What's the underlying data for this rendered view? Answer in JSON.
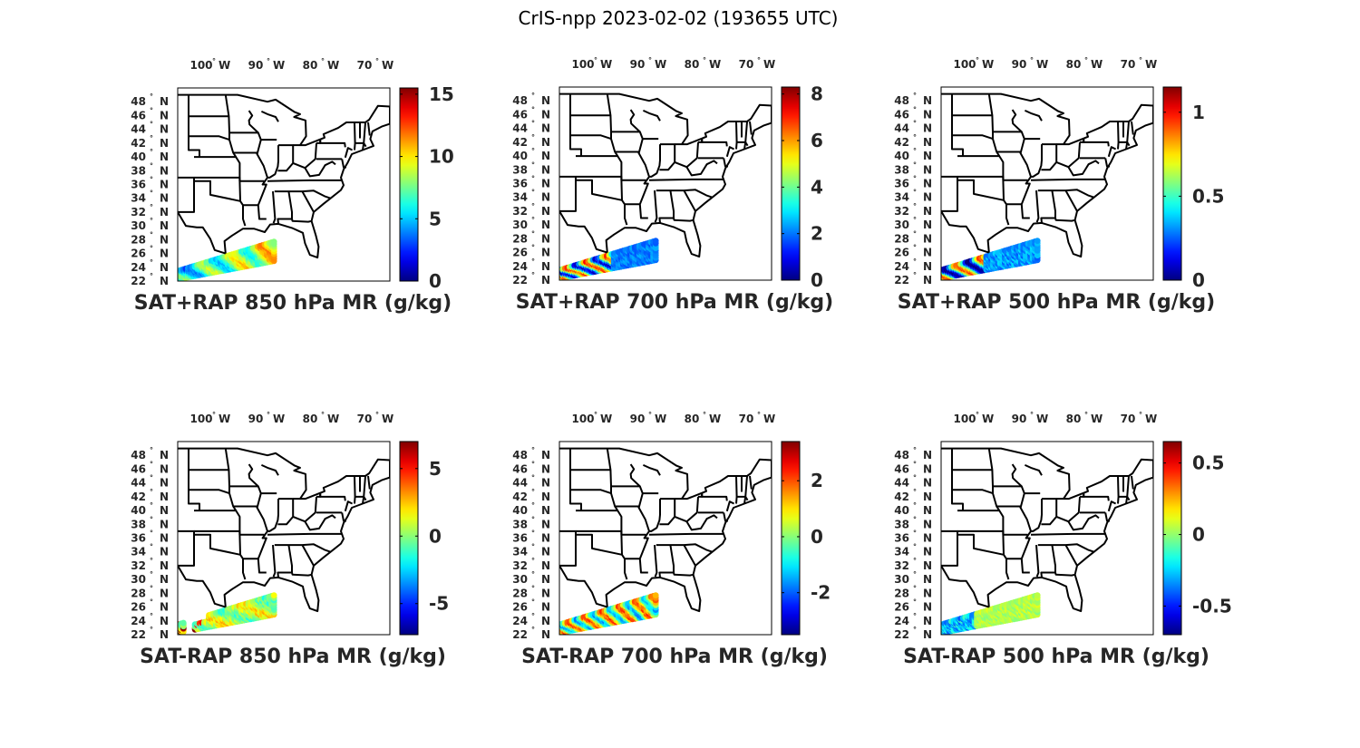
{
  "figure": {
    "title": "CrIS-npp 2023-02-02 (193655 UTC)",
    "lon_ticks": [
      {
        "val": 100,
        "label": "W"
      },
      {
        "val": 90,
        "label": "W"
      },
      {
        "val": 80,
        "label": "W"
      },
      {
        "val": 70,
        "label": "W"
      }
    ],
    "lat_ticks": [
      {
        "val": 48,
        "label": "N"
      },
      {
        "val": 46,
        "label": "N"
      },
      {
        "val": 44,
        "label": "N"
      },
      {
        "val": 42,
        "label": "N"
      },
      {
        "val": 40,
        "label": "N"
      },
      {
        "val": 38,
        "label": "N"
      },
      {
        "val": 36,
        "label": "N"
      },
      {
        "val": 34,
        "label": "N"
      },
      {
        "val": 32,
        "label": "N"
      },
      {
        "val": 30,
        "label": "N"
      },
      {
        "val": 28,
        "label": "N"
      },
      {
        "val": 26,
        "label": "N"
      },
      {
        "val": 24,
        "label": "N"
      },
      {
        "val": 22,
        "label": "N"
      }
    ],
    "colormap": "jet",
    "map_extent": {
      "lon_min": -106,
      "lon_max": -67,
      "lat_min": 22,
      "lat_max": 50
    }
  },
  "panels": [
    {
      "title": "SAT+RAP 850 hPa MR (g/kg)",
      "clim": [
        0,
        15.5
      ],
      "cb_ticks": [
        0,
        5,
        10,
        15
      ],
      "data_pattern": "moist-850"
    },
    {
      "title": "SAT+RAP 700 hPa MR (g/kg)",
      "clim": [
        0,
        8.3
      ],
      "cb_ticks": [
        0,
        2,
        4,
        6,
        8
      ],
      "data_pattern": "moist-700"
    },
    {
      "title": "SAT+RAP 500 hPa MR (g/kg)",
      "clim": [
        0,
        1.15
      ],
      "cb_ticks": [
        0,
        0.5,
        1
      ],
      "data_pattern": "moist-500"
    },
    {
      "title": "SAT-RAP 850 hPa MR (g/kg)",
      "clim": [
        -7.3,
        7
      ],
      "cb_ticks": [
        -5,
        0,
        5
      ],
      "data_pattern": "diff-850"
    },
    {
      "title": "SAT-RAP 700 hPa MR (g/kg)",
      "clim": [
        -3.5,
        3.4
      ],
      "cb_ticks": [
        -2,
        0,
        2
      ],
      "data_pattern": "diff-700"
    },
    {
      "title": "SAT-RAP 500 hPa MR (g/kg)",
      "clim": [
        -0.7,
        0.65
      ],
      "cb_ticks": [
        -0.5,
        0,
        0.5
      ],
      "data_pattern": "diff-500"
    }
  ]
}
